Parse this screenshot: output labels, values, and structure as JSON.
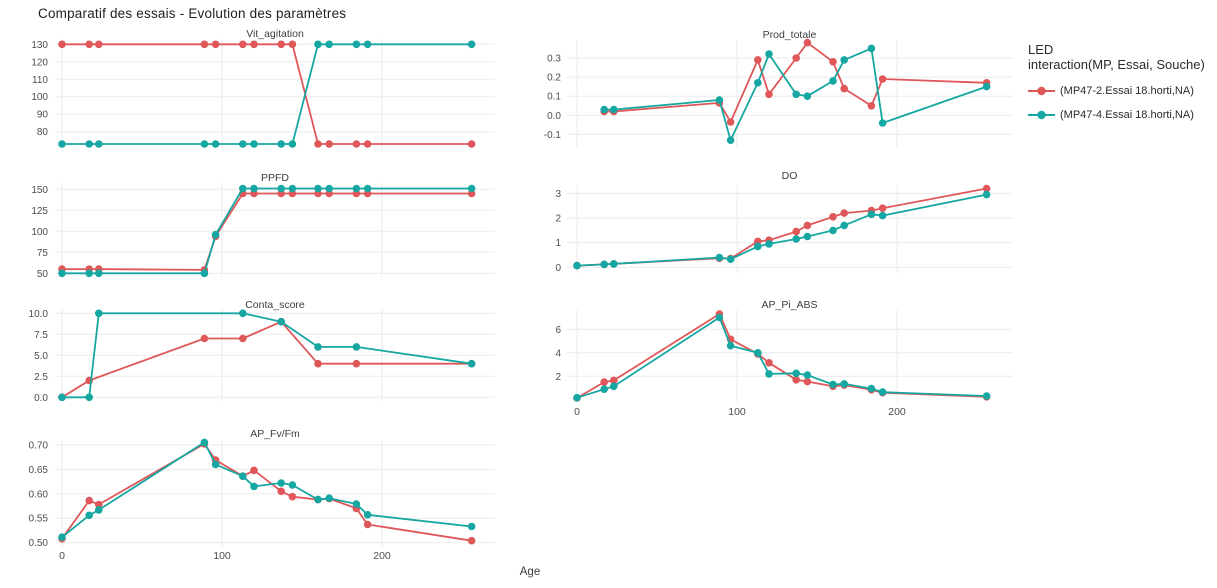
{
  "title": "Comparatif des essais - Evolution des paramètres",
  "x_axis": {
    "label": "Age",
    "ticks": [
      0,
      100,
      200
    ],
    "tick_labels": [
      "0",
      "100",
      "200"
    ]
  },
  "colors": {
    "series_red": "#df5758",
    "series_teal": "#16a7a2",
    "grid": "#ebebeb",
    "tick_text": "#4d4d4d",
    "subplot_title_text": "#3d3d3d",
    "main_title_text": "#212121"
  },
  "legend": {
    "title_line1": "LED",
    "title_line2": "interaction(MP, Essai, Souche)",
    "entries": [
      {
        "label": "(MP47-2.Essai 18.horti,NA)",
        "color": "#df5758"
      },
      {
        "label": "(MP47-4.Essai 18.horti,NA)",
        "color": "#16a7a2"
      }
    ]
  },
  "chart_data": {
    "type": "line",
    "title": "Comparatif des essais - Evolution des paramètres",
    "xlabel": "Age",
    "x_ticks": [
      0,
      100,
      200
    ],
    "x_tick_labels": [
      "0",
      "100",
      "200"
    ],
    "x_range": [
      -6,
      272
    ],
    "grid": true,
    "legend_position": "top-right",
    "series_names": [
      "(MP47-2.Essai 18.horti,NA)",
      "(MP47-4.Essai 18.horti,NA)"
    ],
    "subplots": [
      {
        "id": "vit_agitation",
        "title": "Vit_agitation",
        "yticks": [
          80,
          90,
          100,
          110,
          120,
          130
        ],
        "ytick_labels": [
          "80",
          "90",
          "100",
          "110",
          "120",
          "130"
        ],
        "ylim": [
          68.4,
          133.6
        ],
        "series": [
          {
            "name": "(MP47-2.Essai 18.horti,NA)",
            "color": "#df5758",
            "points": [
              [
                0,
                130
              ],
              [
                17,
                130
              ],
              [
                23,
                130
              ],
              [
                89,
                130
              ],
              [
                96,
                130
              ],
              [
                113,
                130
              ],
              [
                120,
                130
              ],
              [
                137,
                130
              ],
              [
                144,
                130
              ],
              [
                160,
                73
              ],
              [
                167,
                73
              ],
              [
                184,
                73
              ],
              [
                191,
                73
              ],
              [
                256,
                73
              ]
            ]
          },
          {
            "name": "(MP47-4.Essai 18.horti,NA)",
            "color": "#16a7a2",
            "points": [
              [
                0,
                73
              ],
              [
                17,
                73
              ],
              [
                23,
                73
              ],
              [
                89,
                73
              ],
              [
                96,
                73
              ],
              [
                113,
                73
              ],
              [
                120,
                73
              ],
              [
                137,
                73
              ],
              [
                144,
                73
              ],
              [
                160,
                130
              ],
              [
                167,
                130
              ],
              [
                184,
                130
              ],
              [
                191,
                130
              ],
              [
                256,
                130
              ]
            ]
          }
        ]
      },
      {
        "id": "prod_totale",
        "title": "Prod_totale",
        "yticks": [
          -0.1,
          0.0,
          0.1,
          0.2,
          0.3
        ],
        "ytick_labels": [
          "-0.1",
          "0.0",
          "0.1",
          "0.2",
          "0.3"
        ],
        "ylim": [
          -0.171,
          0.394
        ],
        "series": [
          {
            "name": "(MP47-2.Essai 18.horti,NA)",
            "color": "#df5758",
            "points": [
              [
                17,
                0.02
              ],
              [
                23,
                0.02
              ],
              [
                89,
                0.065
              ],
              [
                96,
                -0.035
              ],
              [
                113,
                0.29
              ],
              [
                120,
                0.11
              ],
              [
                137,
                0.3
              ],
              [
                144,
                0.38
              ],
              [
                160,
                0.28
              ],
              [
                167,
                0.14
              ],
              [
                184,
                0.05
              ],
              [
                191,
                0.19
              ],
              [
                256,
                0.17
              ]
            ]
          },
          {
            "name": "(MP47-4.Essai 18.horti,NA)",
            "color": "#16a7a2",
            "points": [
              [
                17,
                0.03
              ],
              [
                23,
                0.03
              ],
              [
                89,
                0.08
              ],
              [
                96,
                -0.13
              ],
              [
                113,
                0.17
              ],
              [
                120,
                0.32
              ],
              [
                137,
                0.11
              ],
              [
                144,
                0.1
              ],
              [
                160,
                0.18
              ],
              [
                167,
                0.29
              ],
              [
                184,
                0.35
              ],
              [
                191,
                -0.04
              ],
              [
                256,
                0.15
              ]
            ]
          }
        ]
      },
      {
        "id": "ppfd",
        "title": "PPFD",
        "yticks": [
          50,
          75,
          100,
          125,
          150
        ],
        "ytick_labels": [
          "50",
          "75",
          "100",
          "125",
          "150"
        ],
        "ylim": [
          44.4,
          157.5
        ],
        "series": [
          {
            "name": "(MP47-2.Essai 18.horti,NA)",
            "color": "#df5758",
            "points": [
              [
                0,
                55
              ],
              [
                17,
                55
              ],
              [
                23,
                55
              ],
              [
                89,
                54
              ],
              [
                96,
                94
              ],
              [
                113,
                145
              ],
              [
                120,
                145
              ],
              [
                137,
                145
              ],
              [
                144,
                145
              ],
              [
                160,
                145
              ],
              [
                167,
                145
              ],
              [
                184,
                145
              ],
              [
                191,
                145
              ],
              [
                256,
                145
              ]
            ]
          },
          {
            "name": "(MP47-4.Essai 18.horti,NA)",
            "color": "#16a7a2",
            "points": [
              [
                0,
                50
              ],
              [
                17,
                50
              ],
              [
                23,
                50
              ],
              [
                89,
                50
              ],
              [
                96,
                96
              ],
              [
                113,
                151
              ],
              [
                120,
                151
              ],
              [
                137,
                151
              ],
              [
                144,
                151
              ],
              [
                160,
                151
              ],
              [
                167,
                151
              ],
              [
                184,
                151
              ],
              [
                191,
                151
              ],
              [
                256,
                151
              ]
            ]
          }
        ]
      },
      {
        "id": "do",
        "title": "DO",
        "yticks": [
          0,
          1,
          2,
          3
        ],
        "ytick_labels": [
          "0",
          "1",
          "2",
          "3"
        ],
        "ylim": [
          -0.23,
          3.34
        ],
        "series": [
          {
            "name": "(MP47-2.Essai 18.horti,NA)",
            "color": "#df5758",
            "points": [
              [
                0,
                0.07
              ],
              [
                17,
                0.12
              ],
              [
                23,
                0.14
              ],
              [
                89,
                0.37
              ],
              [
                96,
                0.36
              ],
              [
                113,
                1.05
              ],
              [
                120,
                1.1
              ],
              [
                137,
                1.45
              ],
              [
                144,
                1.7
              ],
              [
                160,
                2.05
              ],
              [
                167,
                2.2
              ],
              [
                184,
                2.3
              ],
              [
                191,
                2.4
              ],
              [
                256,
                3.2
              ]
            ]
          },
          {
            "name": "(MP47-4.Essai 18.horti,NA)",
            "color": "#16a7a2",
            "points": [
              [
                0,
                0.07
              ],
              [
                17,
                0.12
              ],
              [
                23,
                0.14
              ],
              [
                89,
                0.4
              ],
              [
                96,
                0.33
              ],
              [
                113,
                0.85
              ],
              [
                120,
                0.95
              ],
              [
                137,
                1.15
              ],
              [
                144,
                1.25
              ],
              [
                160,
                1.5
              ],
              [
                167,
                1.7
              ],
              [
                184,
                2.15
              ],
              [
                191,
                2.1
              ],
              [
                256,
                2.95
              ]
            ]
          }
        ]
      },
      {
        "id": "conta_score",
        "title": "Conta_score",
        "yticks": [
          0,
          2.5,
          5,
          7.5,
          10
        ],
        "ytick_labels": [
          "0.0",
          "2.5",
          "5.0",
          "7.5",
          "10.0"
        ],
        "ylim": [
          -0.56,
          10.51
        ],
        "series": [
          {
            "name": "(MP47-2.Essai 18.horti,NA)",
            "color": "#df5758",
            "points": [
              [
                0,
                0
              ],
              [
                17,
                2
              ],
              [
                89,
                7
              ],
              [
                113,
                7
              ],
              [
                137,
                9
              ],
              [
                160,
                4
              ],
              [
                184,
                4
              ],
              [
                256,
                4
              ]
            ]
          },
          {
            "name": "(MP47-4.Essai 18.horti,NA)",
            "color": "#16a7a2",
            "points": [
              [
                0,
                0
              ],
              [
                17,
                0
              ],
              [
                23,
                10
              ],
              [
                113,
                10
              ],
              [
                137,
                9
              ],
              [
                160,
                6
              ],
              [
                184,
                6
              ],
              [
                256,
                4
              ]
            ]
          }
        ]
      },
      {
        "id": "ap_pi_abs",
        "title": "AP_Pi_ABS",
        "yticks": [
          2,
          4,
          6
        ],
        "ytick_labels": [
          "2",
          "4",
          "6"
        ],
        "ylim": [
          -0.19,
          7.64
        ],
        "series": [
          {
            "name": "(MP47-2.Essai 18.horti,NA)",
            "color": "#df5758",
            "points": [
              [
                0,
                0.15
              ],
              [
                17,
                1.5
              ],
              [
                23,
                1.65
              ],
              [
                89,
                7.3
              ],
              [
                96,
                5.15
              ],
              [
                113,
                3.9
              ],
              [
                120,
                3.15
              ],
              [
                137,
                1.7
              ],
              [
                144,
                1.55
              ],
              [
                160,
                1.15
              ],
              [
                167,
                1.25
              ],
              [
                184,
                0.85
              ],
              [
                191,
                0.6
              ],
              [
                256,
                0.25
              ]
            ]
          },
          {
            "name": "(MP47-4.Essai 18.horti,NA)",
            "color": "#16a7a2",
            "points": [
              [
                0,
                0.18
              ],
              [
                17,
                0.9
              ],
              [
                23,
                1.15
              ],
              [
                89,
                7.0
              ],
              [
                96,
                4.6
              ],
              [
                113,
                4.0
              ],
              [
                120,
                2.2
              ],
              [
                137,
                2.25
              ],
              [
                144,
                2.1
              ],
              [
                160,
                1.3
              ],
              [
                167,
                1.35
              ],
              [
                184,
                0.95
              ],
              [
                191,
                0.65
              ],
              [
                256,
                0.32
              ]
            ]
          }
        ]
      },
      {
        "id": "ap_fv_fm",
        "title": "AP_Fv/Fm",
        "yticks": [
          0.5,
          0.55,
          0.6,
          0.65,
          0.7
        ],
        "ytick_labels": [
          "0.50",
          "0.55",
          "0.60",
          "0.65",
          "0.70"
        ],
        "ylim": [
          0.489,
          0.71
        ],
        "series": [
          {
            "name": "(MP47-2.Essai 18.horti,NA)",
            "color": "#df5758",
            "points": [
              [
                0,
                0.508
              ],
              [
                17,
                0.586
              ],
              [
                23,
                0.578
              ],
              [
                89,
                0.702
              ],
              [
                96,
                0.669
              ],
              [
                113,
                0.636
              ],
              [
                120,
                0.648
              ],
              [
                137,
                0.605
              ],
              [
                144,
                0.594
              ],
              [
                160,
                0.588
              ],
              [
                167,
                0.59
              ],
              [
                184,
                0.57
              ],
              [
                191,
                0.537
              ],
              [
                256,
                0.504
              ]
            ]
          },
          {
            "name": "(MP47-4.Essai 18.horti,NA)",
            "color": "#16a7a2",
            "points": [
              [
                0,
                0.511
              ],
              [
                17,
                0.556
              ],
              [
                23,
                0.567
              ],
              [
                89,
                0.705
              ],
              [
                96,
                0.66
              ],
              [
                113,
                0.636
              ],
              [
                120,
                0.615
              ],
              [
                137,
                0.622
              ],
              [
                144,
                0.618
              ],
              [
                160,
                0.588
              ],
              [
                167,
                0.591
              ],
              [
                184,
                0.579
              ],
              [
                191,
                0.557
              ],
              [
                256,
                0.533
              ]
            ]
          }
        ]
      }
    ]
  }
}
